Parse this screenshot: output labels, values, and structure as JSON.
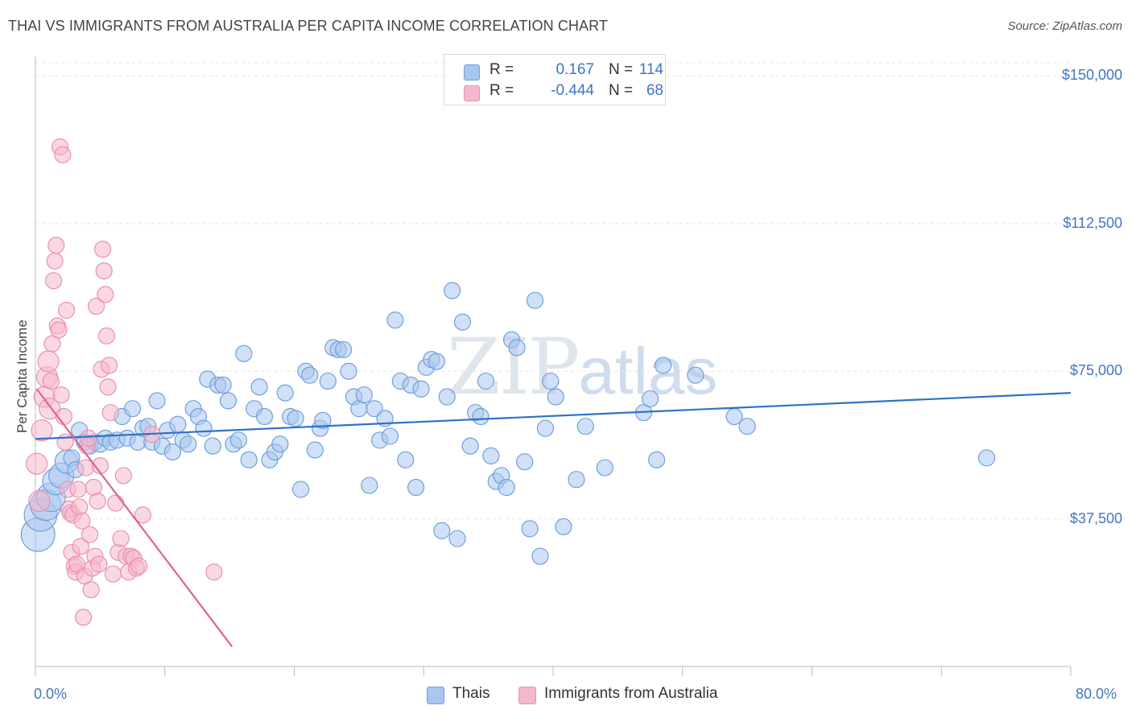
{
  "title": "THAI VS IMMIGRANTS FROM AUSTRALIA PER CAPITA INCOME CORRELATION CHART",
  "source": "Source: ZipAtlas.com",
  "watermark": {
    "zip": "ZIP",
    "atlas": "atlas"
  },
  "legend": {
    "rows": [
      {
        "r_label": "R =",
        "r_value": "0.167",
        "n_label": "N =",
        "n_value": "114",
        "color": "#a9c6ef"
      },
      {
        "r_label": "R =",
        "r_value": "-0.444",
        "n_label": "N =",
        "n_value": "68",
        "color": "#f5b8cc"
      }
    ]
  },
  "bottom_legend": [
    {
      "label": "Thais",
      "color": "#a9c6ef"
    },
    {
      "label": "Immigrants from Australia",
      "color": "#f5b8cc"
    }
  ],
  "chart_data": {
    "type": "scatter",
    "title": "THAI VS IMMIGRANTS FROM AUSTRALIA PER CAPITA INCOME CORRELATION CHART",
    "xlabel": "",
    "ylabel": "Per Capita Income",
    "xlim": [
      0,
      80
    ],
    "ylim": [
      0,
      155000
    ],
    "x_tick_labels": [
      "0.0%",
      "80.0%"
    ],
    "y_ticks": [
      {
        "value": 37500,
        "label": "$37,500"
      },
      {
        "value": 75000,
        "label": "$75,000"
      },
      {
        "value": 112500,
        "label": "$112,500"
      },
      {
        "value": 150000,
        "label": "$150,000"
      }
    ],
    "grid": "horizontal dashed",
    "legend_position": "top-center",
    "series": [
      {
        "name": "Thais",
        "color": "#6f9fdd",
        "fill": "#a9c6ef",
        "trend": {
          "x": [
            0,
            80
          ],
          "y": [
            57800,
            69500
          ],
          "color": "#2f72c8"
        },
        "points": [
          [
            0.2,
            33500
          ],
          [
            0.4,
            38500
          ],
          [
            0.8,
            41000
          ],
          [
            1.2,
            43000
          ],
          [
            1.6,
            47000
          ],
          [
            2.0,
            48500
          ],
          [
            2.4,
            52000
          ],
          [
            2.8,
            53000
          ],
          [
            3.1,
            50000
          ],
          [
            3.4,
            60000
          ],
          [
            3.8,
            57000
          ],
          [
            4.2,
            56000
          ],
          [
            4.6,
            57000
          ],
          [
            5.0,
            56500
          ],
          [
            5.4,
            58000
          ],
          [
            5.8,
            57000
          ],
          [
            6.3,
            57500
          ],
          [
            6.7,
            63500
          ],
          [
            7.1,
            58000
          ],
          [
            7.5,
            65500
          ],
          [
            7.9,
            57000
          ],
          [
            8.3,
            60500
          ],
          [
            8.7,
            61000
          ],
          [
            9.0,
            57000
          ],
          [
            9.4,
            67500
          ],
          [
            9.8,
            56000
          ],
          [
            10.2,
            60000
          ],
          [
            10.6,
            54500
          ],
          [
            11.0,
            61500
          ],
          [
            11.4,
            57500
          ],
          [
            11.8,
            56500
          ],
          [
            12.2,
            65500
          ],
          [
            12.6,
            63500
          ],
          [
            13.0,
            60500
          ],
          [
            13.3,
            73000
          ],
          [
            13.7,
            56000
          ],
          [
            14.1,
            71500
          ],
          [
            14.5,
            71500
          ],
          [
            14.9,
            67500
          ],
          [
            15.3,
            56500
          ],
          [
            15.7,
            57500
          ],
          [
            16.1,
            79500
          ],
          [
            16.5,
            52500
          ],
          [
            16.9,
            65500
          ],
          [
            17.3,
            71000
          ],
          [
            17.7,
            63500
          ],
          [
            18.1,
            52500
          ],
          [
            18.5,
            54500
          ],
          [
            18.9,
            56500
          ],
          [
            19.3,
            69500
          ],
          [
            19.7,
            63500
          ],
          [
            20.1,
            63000
          ],
          [
            20.5,
            45000
          ],
          [
            20.9,
            75000
          ],
          [
            21.2,
            74000
          ],
          [
            21.6,
            55000
          ],
          [
            22.0,
            60500
          ],
          [
            22.2,
            62500
          ],
          [
            22.6,
            72500
          ],
          [
            23.0,
            81000
          ],
          [
            23.4,
            80500
          ],
          [
            23.8,
            80500
          ],
          [
            24.2,
            75000
          ],
          [
            24.6,
            68500
          ],
          [
            25.0,
            65500
          ],
          [
            25.4,
            69000
          ],
          [
            25.8,
            46000
          ],
          [
            26.2,
            65500
          ],
          [
            26.6,
            57500
          ],
          [
            27.0,
            63000
          ],
          [
            27.4,
            58500
          ],
          [
            27.8,
            88000
          ],
          [
            28.2,
            72500
          ],
          [
            28.6,
            52500
          ],
          [
            29.0,
            71500
          ],
          [
            29.4,
            45500
          ],
          [
            29.8,
            70500
          ],
          [
            30.2,
            76000
          ],
          [
            30.6,
            78000
          ],
          [
            31.0,
            77500
          ],
          [
            31.4,
            34500
          ],
          [
            31.8,
            68500
          ],
          [
            32.2,
            95500
          ],
          [
            32.6,
            32500
          ],
          [
            33.0,
            87500
          ],
          [
            33.6,
            56000
          ],
          [
            34.0,
            64500
          ],
          [
            34.4,
            63500
          ],
          [
            34.8,
            72500
          ],
          [
            35.2,
            53500
          ],
          [
            35.6,
            47000
          ],
          [
            36.0,
            48500
          ],
          [
            36.4,
            45500
          ],
          [
            36.8,
            83000
          ],
          [
            37.2,
            81000
          ],
          [
            37.8,
            52000
          ],
          [
            38.2,
            35000
          ],
          [
            38.6,
            93000
          ],
          [
            39.0,
            28000
          ],
          [
            39.4,
            60500
          ],
          [
            39.8,
            72500
          ],
          [
            40.2,
            68500
          ],
          [
            40.8,
            35500
          ],
          [
            41.8,
            47500
          ],
          [
            42.5,
            61000
          ],
          [
            44.0,
            50500
          ],
          [
            47.0,
            64500
          ],
          [
            47.5,
            68000
          ],
          [
            48.0,
            52500
          ],
          [
            48.5,
            76500
          ],
          [
            51.0,
            74000
          ],
          [
            54.0,
            63500
          ],
          [
            55.0,
            61000
          ],
          [
            73.5,
            53000
          ]
        ]
      },
      {
        "name": "Immigrants from Australia",
        "color": "#e890ae",
        "fill": "#f5b8cc",
        "trend": {
          "x": [
            0.1,
            15.2
          ],
          "y": [
            70500,
            5000
          ],
          "color": "#e06191"
        },
        "points": [
          [
            0.1,
            51500
          ],
          [
            0.3,
            42000
          ],
          [
            0.5,
            60000
          ],
          [
            0.7,
            68500
          ],
          [
            0.9,
            73500
          ],
          [
            1.0,
            77500
          ],
          [
            1.1,
            65500
          ],
          [
            1.2,
            72500
          ],
          [
            1.3,
            82000
          ],
          [
            1.4,
            98000
          ],
          [
            1.5,
            103000
          ],
          [
            1.6,
            107000
          ],
          [
            1.7,
            86500
          ],
          [
            1.8,
            85500
          ],
          [
            1.9,
            132000
          ],
          [
            2.0,
            69000
          ],
          [
            2.1,
            130000
          ],
          [
            2.2,
            63500
          ],
          [
            2.3,
            57000
          ],
          [
            2.4,
            90500
          ],
          [
            2.5,
            45000
          ],
          [
            2.6,
            40000
          ],
          [
            2.7,
            39000
          ],
          [
            2.8,
            29000
          ],
          [
            2.9,
            38500
          ],
          [
            3.0,
            25500
          ],
          [
            3.1,
            24000
          ],
          [
            3.2,
            26000
          ],
          [
            3.3,
            45000
          ],
          [
            3.4,
            40500
          ],
          [
            3.5,
            30500
          ],
          [
            3.6,
            37000
          ],
          [
            3.7,
            12500
          ],
          [
            3.8,
            23000
          ],
          [
            3.9,
            50500
          ],
          [
            4.0,
            56000
          ],
          [
            4.1,
            58000
          ],
          [
            4.2,
            33500
          ],
          [
            4.3,
            19500
          ],
          [
            4.4,
            25000
          ],
          [
            4.5,
            45500
          ],
          [
            4.6,
            28000
          ],
          [
            4.7,
            91500
          ],
          [
            4.8,
            42000
          ],
          [
            4.9,
            26000
          ],
          [
            5.0,
            51000
          ],
          [
            5.1,
            75500
          ],
          [
            5.2,
            106000
          ],
          [
            5.3,
            100500
          ],
          [
            5.4,
            94500
          ],
          [
            5.5,
            84000
          ],
          [
            5.6,
            71000
          ],
          [
            5.7,
            76500
          ],
          [
            5.8,
            64500
          ],
          [
            6.0,
            23500
          ],
          [
            6.2,
            41500
          ],
          [
            6.4,
            29000
          ],
          [
            6.6,
            32500
          ],
          [
            6.8,
            48500
          ],
          [
            7.0,
            28000
          ],
          [
            7.2,
            24000
          ],
          [
            7.4,
            28000
          ],
          [
            7.6,
            27500
          ],
          [
            7.8,
            25000
          ],
          [
            8.0,
            25500
          ],
          [
            8.3,
            38500
          ],
          [
            9.0,
            59000
          ],
          [
            13.8,
            24000
          ]
        ]
      }
    ]
  }
}
